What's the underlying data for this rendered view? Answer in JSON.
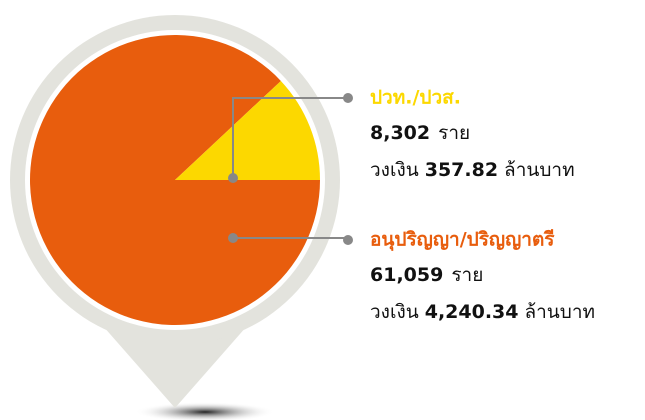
{
  "chart_data": {
    "type": "pie",
    "categories": [
      "ปวท./ปวส.",
      "อนุปริญญา/ปริญญาตรี"
    ],
    "values": [
      8302,
      61059
    ],
    "value_labels": [
      "8,302",
      "61,059"
    ],
    "colors": [
      "#fcd800",
      "#e85d0d"
    ],
    "count_unit": "ราย",
    "amount_prefix": "วงเงิน",
    "amounts": [
      357.82,
      4240.34
    ],
    "amount_labels": [
      "357.82",
      "4,240.34"
    ],
    "amount_unit": "ล้านบาท"
  }
}
